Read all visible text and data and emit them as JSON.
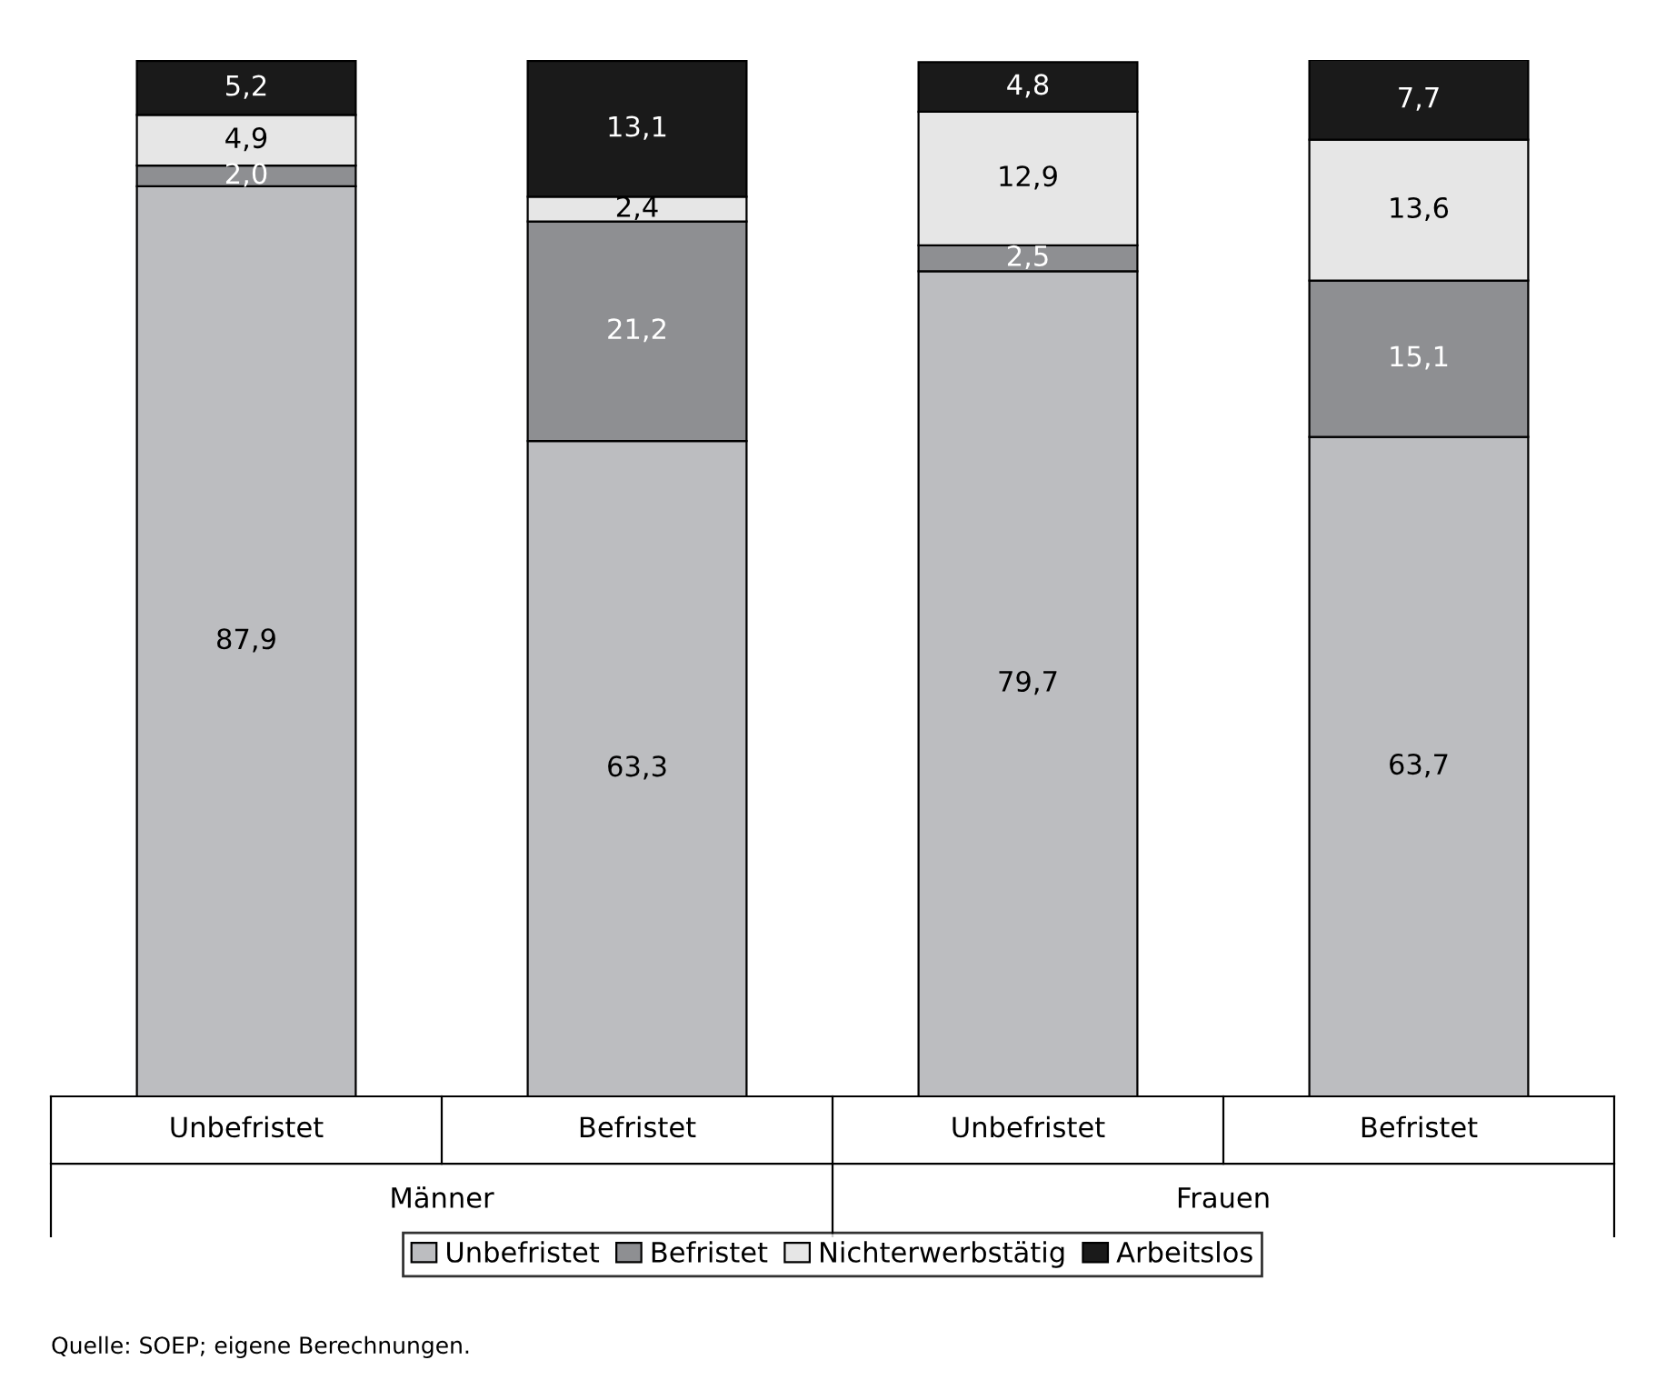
{
  "chart_data": {
    "type": "bar",
    "stacked": true,
    "legend": "bottom",
    "categories": [
      "Unbefristet",
      "Befristet",
      "Unbefristet",
      "Befristet"
    ],
    "series": [
      {
        "name": "Unbefristet",
        "color": "#bcbdc0",
        "values": [
          87.9,
          63.3,
          79.7,
          63.7
        ],
        "value_labels": [
          "87,9",
          "63,3",
          "79,7",
          "63,7"
        ]
      },
      {
        "name": "Befristet",
        "color": "#8e8f92",
        "values": [
          2.0,
          21.2,
          2.5,
          15.1
        ],
        "value_labels": [
          "2,0",
          "21,2",
          "2,5",
          "15,1"
        ]
      },
      {
        "name": "Nichterwerbstätig",
        "color": "#e6e6e6",
        "values": [
          4.9,
          2.4,
          12.9,
          13.6
        ],
        "value_labels": [
          "4,9",
          "2,4",
          "12,9",
          "13,6"
        ]
      },
      {
        "name": "Arbeitslos",
        "color": "#1a1a1a",
        "values": [
          5.2,
          13.1,
          4.8,
          7.7
        ],
        "value_labels": [
          "5,2",
          "13,1",
          "4,8",
          "7,7"
        ]
      }
    ],
    "annotations": [
      "Männer",
      "Frauen",
      "Quelle: SOEP; eigene Berechnungen."
    ]
  }
}
